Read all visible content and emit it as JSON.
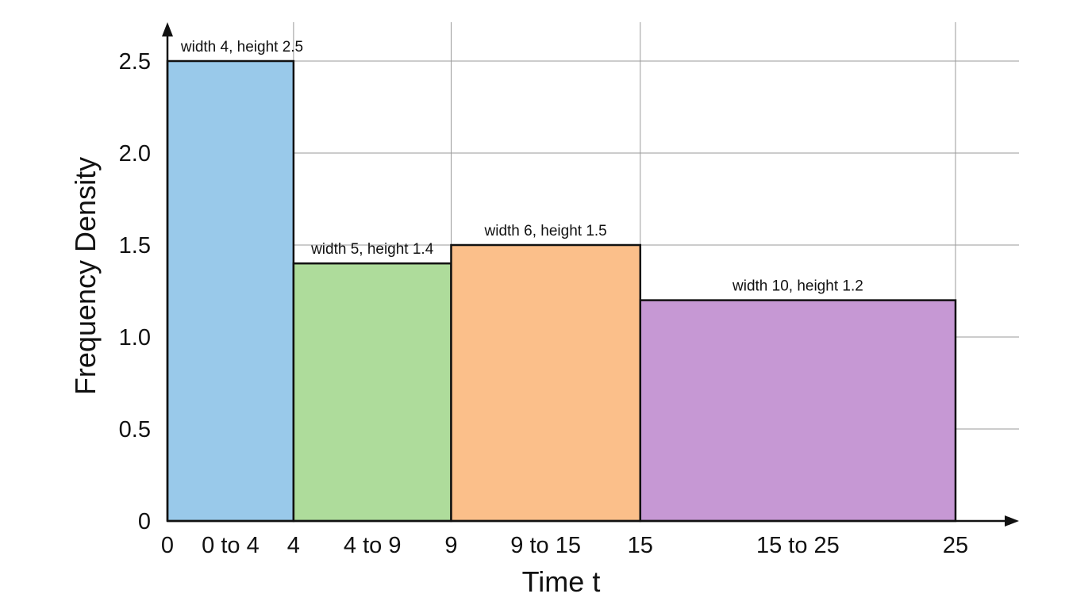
{
  "chart_data": {
    "type": "bar",
    "title": "",
    "xlabel": "Time t",
    "ylabel": "Frequency Density",
    "xlim": [
      0,
      25
    ],
    "ylim": [
      0,
      2.5
    ],
    "grid": true,
    "x_ticks": [
      0,
      4,
      9,
      15,
      25
    ],
    "x_tick_labels": [
      "0",
      "4",
      "9",
      "15",
      "25"
    ],
    "y_ticks": [
      0,
      0.5,
      1.0,
      1.5,
      2.0,
      2.5
    ],
    "y_tick_labels": [
      "0",
      "0.5",
      "1.0",
      "1.5",
      "2.0",
      "2.5"
    ],
    "bars": [
      {
        "x_start": 0,
        "x_end": 4,
        "height": 2.5,
        "range_label": "0 to 4",
        "label": "width 4, height 2.5",
        "color": "#99c9ea"
      },
      {
        "x_start": 4,
        "x_end": 9,
        "height": 1.4,
        "range_label": "4 to 9",
        "label": "width 5, height 1.4",
        "color": "#aedc9b"
      },
      {
        "x_start": 9,
        "x_end": 15,
        "height": 1.5,
        "range_label": "9 to 15",
        "label": "width 6, height 1.5",
        "color": "#fbbf8a"
      },
      {
        "x_start": 15,
        "x_end": 25,
        "height": 1.2,
        "range_label": "15 to 25",
        "label": "width 10, height 1.2",
        "color": "#c698d4"
      }
    ]
  }
}
